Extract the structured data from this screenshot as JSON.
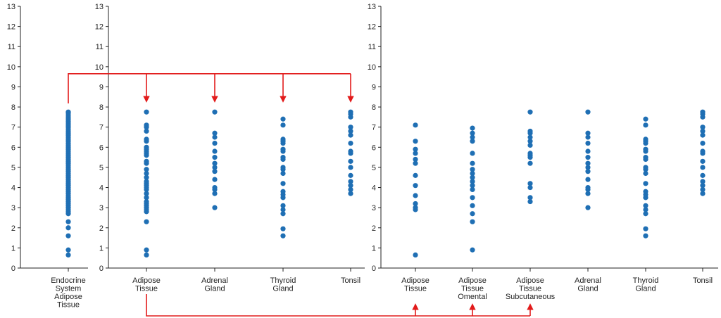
{
  "colors": {
    "point": "#1f6fb4",
    "arrow": "#e21b1b",
    "axis": "#222222"
  },
  "chart_data": [
    {
      "type": "scatter",
      "ylim": [
        0,
        13
      ],
      "yticks": [
        "0",
        "1",
        "2",
        "3",
        "4",
        "5",
        "6",
        "7",
        "8",
        "9",
        "10",
        "11",
        "12",
        "13"
      ],
      "categories": [
        {
          "label": [
            "Endocrine",
            "System",
            "Adipose",
            "Tissue"
          ],
          "values": [
            0.65,
            0.9,
            1.6,
            2.0,
            2.3,
            2.7,
            2.8,
            2.9,
            3.0,
            3.1,
            3.2,
            3.3,
            3.4,
            3.5,
            3.6,
            3.7,
            3.8,
            3.9,
            4.0,
            4.1,
            4.2,
            4.3,
            4.4,
            4.5,
            4.6,
            4.7,
            4.8,
            4.9,
            5.0,
            5.1,
            5.2,
            5.3,
            5.4,
            5.5,
            5.6,
            5.7,
            5.8,
            5.9,
            6.0,
            6.1,
            6.2,
            6.3,
            6.4,
            6.5,
            6.6,
            6.7,
            6.8,
            6.9,
            7.0,
            7.1,
            7.2,
            7.3,
            7.4,
            7.5,
            7.6,
            7.7,
            7.75
          ]
        }
      ]
    },
    {
      "type": "scatter",
      "ylim": [
        0,
        13
      ],
      "yticks": [
        "0",
        "1",
        "2",
        "3",
        "4",
        "5",
        "6",
        "7",
        "8",
        "9",
        "10",
        "11",
        "12",
        "13"
      ],
      "categories": [
        {
          "label": [
            "Adipose",
            "Tissue"
          ],
          "values": [
            0.65,
            0.9,
            2.3,
            2.8,
            2.9,
            3.0,
            3.1,
            3.2,
            3.3,
            3.5,
            3.7,
            3.9,
            4.0,
            4.1,
            4.2,
            4.3,
            4.5,
            4.7,
            4.9,
            5.2,
            5.3,
            5.6,
            5.7,
            5.8,
            5.9,
            6.0,
            6.3,
            6.4,
            6.8,
            7.0,
            7.1,
            7.75
          ]
        },
        {
          "label": [
            "Adrenal",
            "Gland"
          ],
          "values": [
            3.0,
            3.7,
            3.9,
            4.0,
            4.4,
            4.8,
            5.0,
            5.2,
            5.5,
            5.8,
            6.2,
            6.5,
            6.7,
            7.75
          ]
        },
        {
          "label": [
            "Thyroid",
            "Gland"
          ],
          "values": [
            1.6,
            1.95,
            2.7,
            2.9,
            3.1,
            3.5,
            3.65,
            3.8,
            4.2,
            4.7,
            4.9,
            5.0,
            5.4,
            5.5,
            5.8,
            5.9,
            6.2,
            6.3,
            6.4,
            7.1,
            7.4
          ]
        },
        {
          "label": [
            "Tonsil"
          ],
          "values": [
            3.7,
            3.9,
            4.1,
            4.3,
            4.6,
            5.0,
            5.3,
            5.7,
            5.8,
            6.2,
            6.6,
            6.8,
            7.0,
            7.5,
            7.65,
            7.75
          ]
        }
      ]
    },
    {
      "type": "scatter",
      "ylim": [
        0,
        13
      ],
      "yticks": [
        "0",
        "1",
        "2",
        "3",
        "4",
        "5",
        "6",
        "7",
        "8",
        "9",
        "10",
        "11",
        "12",
        "13"
      ],
      "categories": [
        {
          "label": [
            "Adipose",
            "Tissue"
          ],
          "values": [
            0.65,
            2.9,
            3.0,
            3.2,
            3.6,
            4.1,
            4.6,
            5.2,
            5.4,
            5.7,
            5.9,
            6.3,
            7.1
          ]
        },
        {
          "label": [
            "Adipose",
            "Tissue",
            "Omental"
          ],
          "values": [
            0.9,
            2.3,
            2.7,
            3.1,
            3.5,
            3.9,
            4.1,
            4.3,
            4.5,
            4.7,
            4.9,
            5.2,
            5.7,
            6.3,
            6.5,
            6.7,
            6.95
          ]
        },
        {
          "label": [
            "Adipose",
            "Tissue",
            "Subcutaneous"
          ],
          "values": [
            3.3,
            3.5,
            4.0,
            4.2,
            5.2,
            5.5,
            5.6,
            5.7,
            6.1,
            6.3,
            6.5,
            6.7,
            6.8,
            7.75
          ]
        },
        {
          "label": [
            "Adrenal",
            "Gland"
          ],
          "values": [
            3.0,
            3.7,
            3.9,
            4.0,
            4.4,
            4.8,
            5.0,
            5.2,
            5.5,
            5.8,
            6.2,
            6.5,
            6.7,
            7.75
          ]
        },
        {
          "label": [
            "Thyroid",
            "Gland"
          ],
          "values": [
            1.6,
            1.95,
            2.7,
            2.9,
            3.1,
            3.5,
            3.65,
            3.8,
            4.2,
            4.7,
            4.9,
            5.0,
            5.4,
            5.5,
            5.8,
            5.9,
            6.2,
            6.3,
            6.4,
            7.1,
            7.4
          ]
        },
        {
          "label": [
            "Tonsil"
          ],
          "values": [
            3.7,
            3.9,
            4.1,
            4.3,
            4.6,
            5.0,
            5.3,
            5.7,
            5.8,
            6.2,
            6.6,
            6.8,
            7.0,
            7.5,
            7.65,
            7.75
          ]
        }
      ]
    }
  ]
}
